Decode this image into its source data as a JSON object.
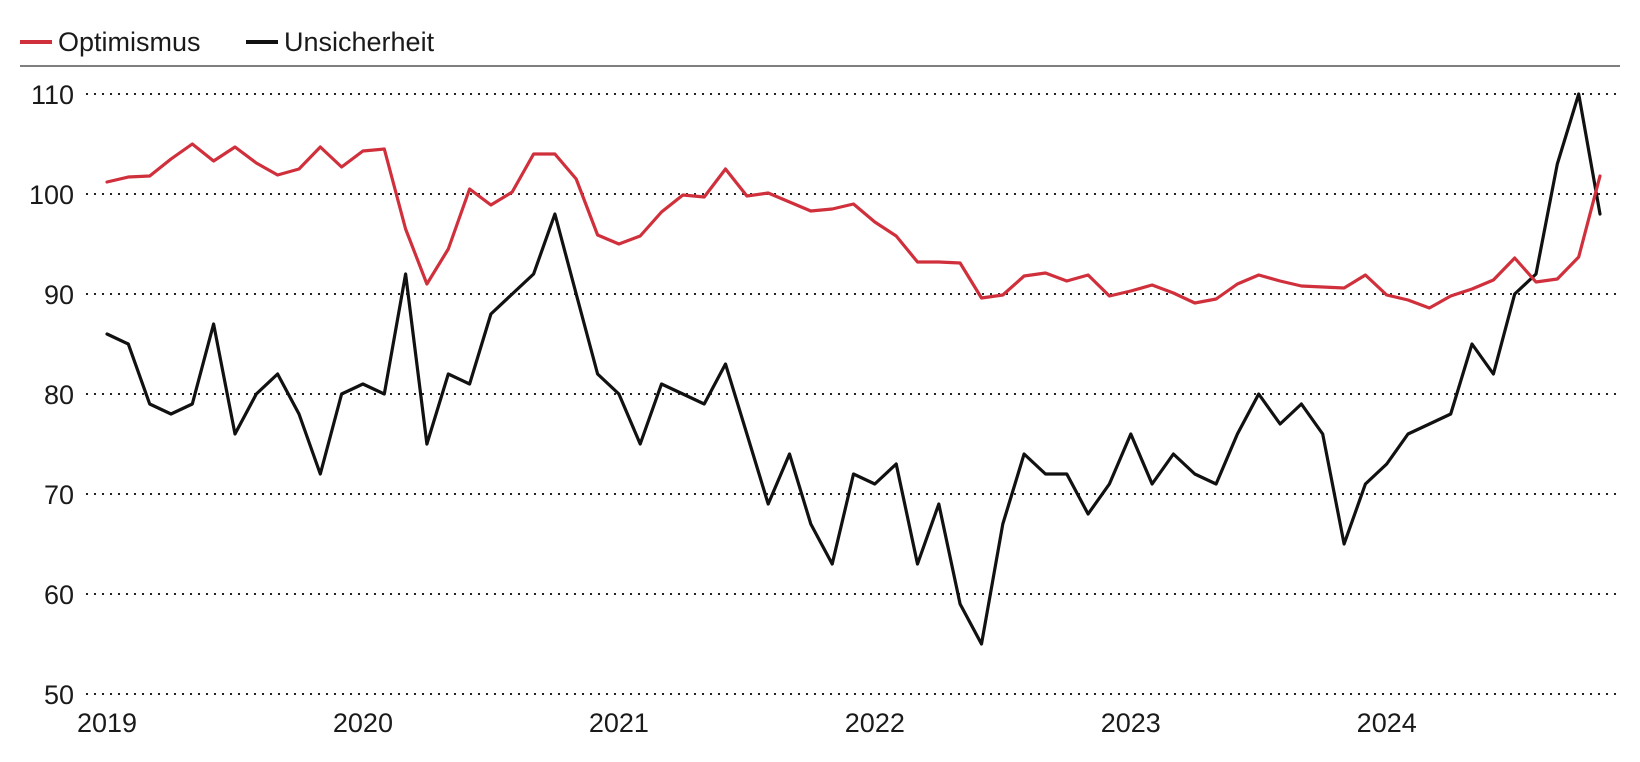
{
  "chart_data": {
    "type": "line",
    "title": "",
    "xlabel": "",
    "ylabel": "",
    "ylim": [
      50,
      110
    ],
    "yticks": [
      50,
      60,
      70,
      80,
      90,
      100,
      110
    ],
    "xlim": [
      2019.0,
      2024.917
    ],
    "xticks": [
      "2019",
      "2020",
      "2021",
      "2022",
      "2023",
      "2024"
    ],
    "grid": "horizontal dotted",
    "legend_position": "top-left",
    "series": [
      {
        "name": "Optimismus",
        "color": "#d0303c",
        "values": [
          101.2,
          101.7,
          101.8,
          103.5,
          105.0,
          103.3,
          104.7,
          103.1,
          101.9,
          102.5,
          104.7,
          102.7,
          104.3,
          104.5,
          96.5,
          91.0,
          94.5,
          100.5,
          98.9,
          100.2,
          104.0,
          104.0,
          101.5,
          95.9,
          95.0,
          95.8,
          98.2,
          99.9,
          99.7,
          102.5,
          99.8,
          100.1,
          99.2,
          98.3,
          98.5,
          99.0,
          97.2,
          95.8,
          93.2,
          93.2,
          93.1,
          89.6,
          89.9,
          91.8,
          92.1,
          91.3,
          91.9,
          89.8,
          90.3,
          90.9,
          90.1,
          89.1,
          89.5,
          91.0,
          91.9,
          91.3,
          90.8,
          90.7,
          90.6,
          91.9,
          89.9,
          89.4,
          88.6,
          89.8,
          90.5,
          91.4,
          93.6,
          91.2,
          91.5,
          93.7,
          101.8
        ],
        "x_start": "2019-01",
        "frequency": "monthly"
      },
      {
        "name": "Unsicherheit",
        "color": "#111111",
        "values": [
          86,
          85,
          79,
          78,
          79,
          87,
          76,
          80,
          82,
          78,
          72,
          80,
          81,
          80,
          92,
          75,
          82,
          81,
          88,
          90,
          92,
          98,
          90,
          82,
          80,
          75,
          81,
          80,
          79,
          83,
          76,
          69,
          74,
          67,
          63,
          72,
          71,
          73,
          63,
          69,
          59,
          55,
          67,
          74,
          72,
          72,
          68,
          71,
          76,
          71,
          74,
          72,
          71,
          76,
          80,
          77,
          79,
          76,
          65,
          71,
          73,
          76,
          77,
          78,
          85,
          82,
          90,
          92,
          103,
          110,
          98
        ],
        "x_start": "2019-01",
        "frequency": "monthly"
      }
    ]
  }
}
